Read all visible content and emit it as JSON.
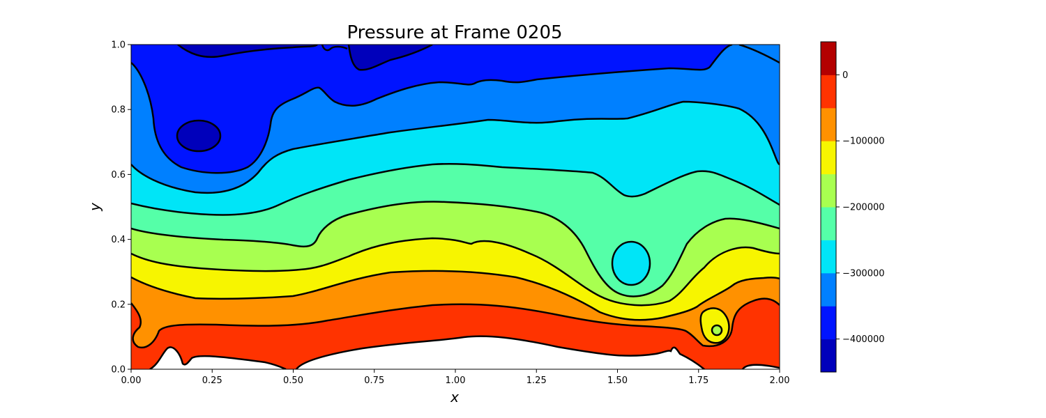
{
  "chart_data": {
    "type": "contour",
    "title": "Pressure at Frame 0205",
    "xlabel": "x",
    "ylabel": "y",
    "xlim": [
      0,
      2
    ],
    "ylim": [
      0,
      1
    ],
    "x_ticks": [
      "0.00",
      "0.25",
      "0.50",
      "0.75",
      "1.00",
      "1.25",
      "1.50",
      "1.75",
      "2.00"
    ],
    "y_ticks": [
      "0.0",
      "0.2",
      "0.4",
      "0.6",
      "0.8",
      "1.0"
    ],
    "colormap": "jet",
    "colorbar": {
      "range": [
        -450000,
        50000
      ],
      "levels": [
        -450000,
        -400000,
        -350000,
        -300000,
        -250000,
        -200000,
        -150000,
        -100000,
        -50000,
        0,
        50000
      ],
      "tick_labels": [
        "0",
        "−100000",
        "−200000",
        "−300000",
        "−400000"
      ],
      "colors": [
        "#0000bb",
        "#0014ff",
        "#0080ff",
        "#00e5f7",
        "#55ffa8",
        "#a8ff50",
        "#f7f500",
        "#ff9100",
        "#ff3300",
        "#b30000"
      ]
    },
    "contour_lines": "black",
    "features": [
      {
        "kind": "low-pressure pocket",
        "x": 0.22,
        "y": 0.72
      },
      {
        "kind": "low-pressure pocket",
        "x": 1.54,
        "y": 0.33
      },
      {
        "kind": "high-pressure pocket",
        "x": 1.81,
        "y": 0.12
      }
    ]
  }
}
